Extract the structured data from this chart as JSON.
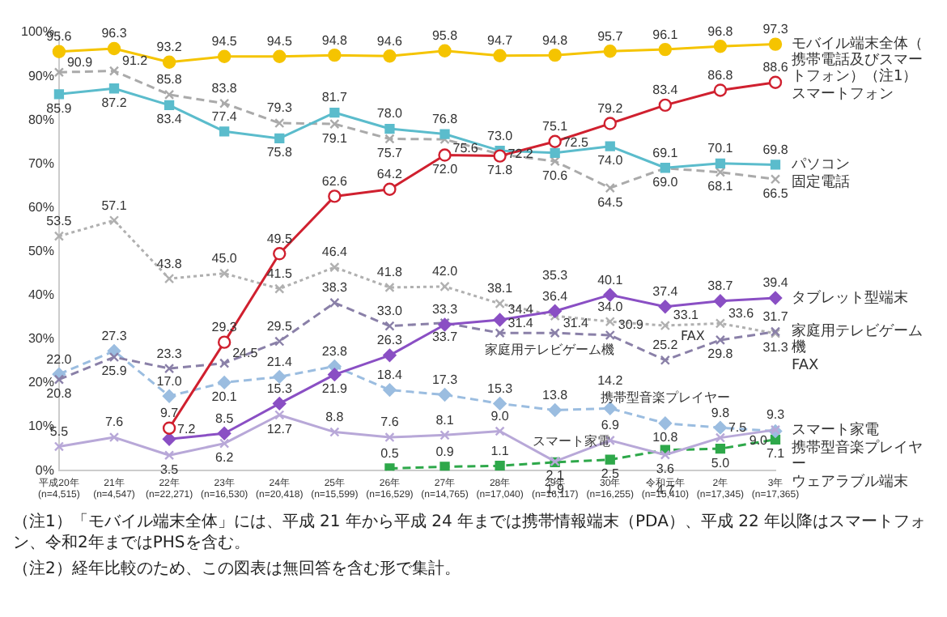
{
  "chart_data": {
    "type": "line",
    "categories": [
      "平成20年(n=4,515)",
      "21年(n=4,547)",
      "22年(n=22,271)",
      "23年(n=16,530)",
      "24年(n=20,418)",
      "25年(n=15,599)",
      "26年(n=16,529)",
      "27年(n=14,765)",
      "28年(n=17,040)",
      "29年(n=16,117)",
      "30年(n=16,255)",
      "令和元年(n=15,410)",
      "2年(n=17,345)",
      "3年(n=17,365)"
    ],
    "series": [
      {
        "name": "モバイル端末全体（携帯電話及びスマートフォン）（注1）",
        "color": "#f5c400",
        "marker": "circle",
        "line_style": "solid",
        "values": [
          95.6,
          96.3,
          93.2,
          94.5,
          94.5,
          94.8,
          94.6,
          95.8,
          94.7,
          94.8,
          95.7,
          96.1,
          96.8,
          97.3
        ],
        "value_labels": [
          "95.6",
          "96.3",
          "93.2",
          "94.5",
          "94.5",
          "94.8",
          "94.6",
          "95.8",
          "94.7",
          "94.8",
          "95.7",
          "96.1",
          "96.8",
          "97.3"
        ]
      },
      {
        "name": "スマートフォン",
        "color": "#d0202f",
        "marker": "circle",
        "line_style": "solid",
        "values": [
          null,
          null,
          9.7,
          29.3,
          49.5,
          62.6,
          64.2,
          72.0,
          71.8,
          75.1,
          79.2,
          83.4,
          86.8,
          88.6
        ],
        "value_labels": [
          null,
          null,
          "9.7",
          "29.3",
          "49.5",
          "62.6",
          "64.2",
          "72.0",
          "71.8",
          "75.1",
          "79.2",
          "83.4",
          "86.8",
          "88.6"
        ]
      },
      {
        "name": "パソコン",
        "color": "#5bbccc",
        "marker": "square",
        "line_style": "solid",
        "values": [
          85.9,
          87.2,
          83.4,
          77.4,
          75.8,
          81.7,
          78.0,
          76.8,
          73.0,
          72.5,
          74.0,
          69.1,
          70.1,
          69.8
        ],
        "value_labels": [
          "85.9",
          "87.2",
          "83.4",
          "77.4",
          "75.8",
          "81.7",
          "78.0",
          "76.8",
          "73.0",
          "72.5",
          "74.0",
          "69.1",
          "70.1",
          "69.8"
        ]
      },
      {
        "name": "固定電話",
        "color": "#aaaaaa",
        "marker": "cross",
        "line_style": "dashed",
        "values": [
          90.9,
          91.2,
          85.8,
          83.8,
          79.3,
          79.1,
          75.7,
          75.6,
          72.2,
          70.6,
          64.5,
          69.0,
          68.1,
          66.5
        ],
        "value_labels": [
          "90.9",
          "91.2",
          "85.8",
          "83.8",
          "79.3",
          "79.1",
          "75.7",
          "75.6",
          "72.2",
          "70.6",
          "64.5",
          "69.0",
          "68.1",
          "66.5"
        ]
      },
      {
        "name": "タブレット型端末",
        "color": "#8a4fc4",
        "marker": "diamond",
        "line_style": "solid",
        "values": [
          null,
          null,
          7.2,
          8.5,
          15.3,
          21.9,
          26.3,
          33.3,
          34.4,
          36.4,
          40.1,
          37.4,
          38.7,
          39.4
        ],
        "value_labels": [
          null,
          null,
          "7.2",
          "8.5",
          "15.3",
          "21.9",
          "26.3",
          "33.3",
          "34.4",
          "36.4",
          "40.1",
          "37.4",
          "38.7",
          "39.4"
        ]
      },
      {
        "name": "家庭用テレビゲーム機",
        "color": "#8a80a8",
        "marker": "cross",
        "line_style": "dashed",
        "values": [
          20.8,
          25.9,
          23.3,
          24.5,
          29.5,
          38.3,
          33.0,
          33.7,
          31.4,
          31.4,
          30.9,
          25.2,
          29.8,
          31.7
        ],
        "value_labels": [
          "20.8",
          "25.9",
          "23.3",
          "24.5",
          "29.5",
          "38.3",
          "33.0",
          "33.7",
          "31.4",
          "31.4",
          "30.9",
          "25.2",
          "29.8",
          "31.7"
        ]
      },
      {
        "name": "FAX",
        "color": "#b0b0b0",
        "marker": "cross",
        "line_style": "dotted",
        "values": [
          53.5,
          57.1,
          43.8,
          45.0,
          41.5,
          46.4,
          41.8,
          42.0,
          38.1,
          35.3,
          34.0,
          33.1,
          33.6,
          31.3
        ],
        "value_labels": [
          "53.5",
          "57.1",
          "43.8",
          "45.0",
          "41.5",
          "46.4",
          "41.8",
          "42.0",
          "38.1",
          "35.3",
          "34.0",
          "33.1",
          "33.6",
          "31.3"
        ]
      },
      {
        "name": "スマート家電",
        "color": "#b8a8d8",
        "marker": "cross",
        "line_style": "solid",
        "values": [
          5.5,
          7.6,
          3.5,
          6.2,
          12.7,
          8.8,
          7.6,
          8.1,
          9.0,
          2.1,
          6.9,
          3.6,
          7.5,
          9.3
        ],
        "value_labels": [
          "5.5",
          "7.6",
          "3.5",
          "6.2",
          "12.7",
          "8.8",
          "7.6",
          "8.1",
          "9.0",
          "2.1",
          "6.9",
          "3.6",
          "7.5",
          "9.3"
        ]
      },
      {
        "name": "携帯型音楽プレイヤー",
        "color": "#9bbde0",
        "marker": "diamond",
        "line_style": "dashed",
        "values": [
          22.0,
          27.3,
          17.0,
          20.1,
          21.4,
          23.8,
          18.4,
          17.3,
          15.3,
          13.8,
          14.2,
          10.8,
          9.8,
          9.0
        ],
        "value_labels": [
          "22.0",
          "27.3",
          "17.0",
          "20.1",
          "21.4",
          "23.8",
          "18.4",
          "17.3",
          "15.3",
          "13.8",
          "14.2",
          "10.8",
          "9.8",
          "9.0"
        ]
      },
      {
        "name": "ウェアラブル端末",
        "color": "#2ea84a",
        "marker": "square",
        "line_style": "dashed",
        "values": [
          null,
          null,
          null,
          null,
          null,
          null,
          0.5,
          0.9,
          1.1,
          1.9,
          2.5,
          4.7,
          5.0,
          7.1
        ],
        "value_labels": [
          null,
          null,
          null,
          null,
          null,
          null,
          "0.5",
          "0.9",
          "1.1",
          "1.9",
          "2.5",
          "4.7",
          "5.0",
          "7.1"
        ]
      }
    ],
    "ylim": [
      0,
      100
    ],
    "yticks": [
      {
        "value": 0,
        "label": "0%"
      },
      {
        "value": 10,
        "label": "10%"
      },
      {
        "value": 20,
        "label": "20%"
      },
      {
        "value": 30,
        "label": "30%"
      },
      {
        "value": 40,
        "label": "40%"
      },
      {
        "value": 50,
        "label": "50%"
      },
      {
        "value": 60,
        "label": "60%"
      },
      {
        "value": 70,
        "label": "70%"
      },
      {
        "value": 80,
        "label": "80%"
      },
      {
        "value": 90,
        "label": "90%"
      },
      {
        "value": 100,
        "label": "100%"
      }
    ],
    "grid": false,
    "legend": false,
    "annotations": [
      "FAX",
      "家庭用テレビゲーム機",
      "携帯型音楽プレイヤー",
      "スマート家電",
      "（注1）「モバイル端末全体」には、平成 21 年から平成 24 年までは携帯情報端末（PDA）、平成 22 年以降はスマートフォン、令和2年まではPHSを含む。",
      "（注2）経年比較のため、この図表は無回答を含む形で集計。"
    ]
  }
}
